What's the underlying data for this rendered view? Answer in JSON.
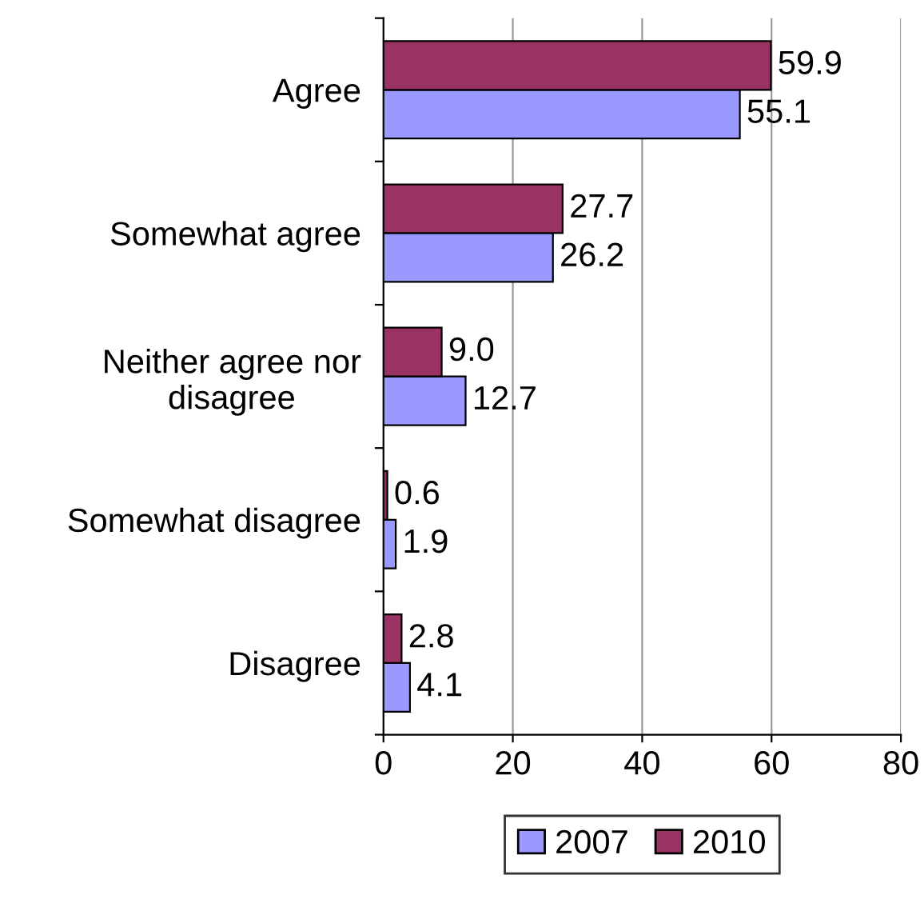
{
  "chart_data": {
    "type": "bar",
    "orientation": "horizontal",
    "categories": [
      "Agree",
      "Somewhat agree",
      "Neither agree nor\ndisagree",
      "Somewhat disagree",
      "Disagree"
    ],
    "series": [
      {
        "name": "2007",
        "color": "#9999ff",
        "values": [
          55.1,
          26.2,
          12.7,
          1.9,
          4.1
        ],
        "value_labels": [
          "55.1",
          "26.2",
          "12.7",
          "1.9",
          "4.1"
        ]
      },
      {
        "name": "2010",
        "color": "#993366",
        "values": [
          59.9,
          27.7,
          9.0,
          0.6,
          2.8
        ],
        "value_labels": [
          "59.9",
          "27.7",
          "9.0",
          "0.6",
          "2.8"
        ]
      }
    ],
    "xlim": [
      0,
      80
    ],
    "xticks": [
      0,
      20,
      40,
      60,
      80
    ],
    "grid": "x",
    "legend": "bottom"
  }
}
